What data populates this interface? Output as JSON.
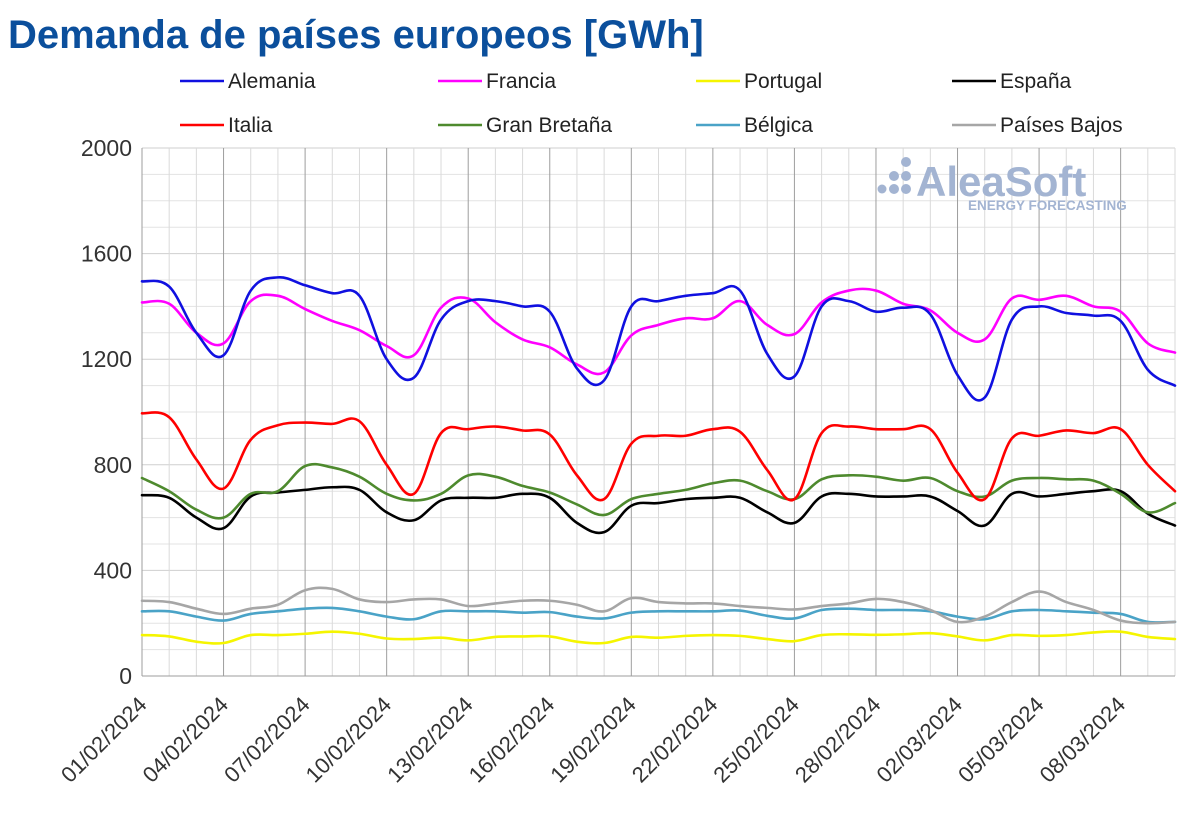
{
  "chart_data": {
    "type": "line",
    "title": "Demanda de países europeos [GWh]",
    "title_color": "#0b4f9c",
    "ylim": [
      0,
      2000
    ],
    "yticks": [
      0,
      400,
      800,
      1200,
      1600,
      2000
    ],
    "grid": true,
    "legend_position": "top",
    "x_tick_labels": [
      "01/02/2024",
      "04/02/2024",
      "07/02/2024",
      "10/02/2024",
      "13/02/2024",
      "16/02/2024",
      "19/02/2024",
      "22/02/2024",
      "25/02/2024",
      "28/02/2024",
      "02/03/2024",
      "05/03/2024",
      "08/03/2024"
    ],
    "x": [
      "01/02/2024",
      "02/02/2024",
      "03/02/2024",
      "04/02/2024",
      "05/02/2024",
      "06/02/2024",
      "07/02/2024",
      "08/02/2024",
      "09/02/2024",
      "10/02/2024",
      "11/02/2024",
      "12/02/2024",
      "13/02/2024",
      "14/02/2024",
      "15/02/2024",
      "16/02/2024",
      "17/02/2024",
      "18/02/2024",
      "19/02/2024",
      "20/02/2024",
      "21/02/2024",
      "22/02/2024",
      "23/02/2024",
      "24/02/2024",
      "25/02/2024",
      "26/02/2024",
      "27/02/2024",
      "28/02/2024",
      "29/02/2024",
      "01/03/2024",
      "02/03/2024",
      "03/03/2024",
      "04/03/2024",
      "05/03/2024",
      "06/03/2024",
      "07/03/2024",
      "08/03/2024",
      "09/03/2024",
      "10/03/2024"
    ],
    "series": [
      {
        "name": "Alemania",
        "color": "#1010e0",
        "values": [
          1495,
          1475,
          1300,
          1215,
          1460,
          1510,
          1480,
          1450,
          1440,
          1200,
          1130,
          1350,
          1420,
          1420,
          1400,
          1380,
          1165,
          1120,
          1400,
          1420,
          1440,
          1450,
          1460,
          1220,
          1135,
          1400,
          1420,
          1380,
          1395,
          1370,
          1140,
          1055,
          1350,
          1400,
          1375,
          1365,
          1345,
          1160,
          1100
        ]
      },
      {
        "name": "Francia",
        "color": "#ff00ff",
        "values": [
          1415,
          1410,
          1300,
          1260,
          1420,
          1440,
          1390,
          1345,
          1310,
          1250,
          1215,
          1395,
          1430,
          1340,
          1275,
          1245,
          1180,
          1150,
          1290,
          1330,
          1355,
          1355,
          1420,
          1330,
          1295,
          1415,
          1460,
          1460,
          1410,
          1385,
          1300,
          1275,
          1430,
          1425,
          1440,
          1400,
          1380,
          1260,
          1225
        ]
      },
      {
        "name": "Portugal",
        "color": "#f5f500",
        "values": [
          155,
          150,
          130,
          125,
          155,
          155,
          160,
          168,
          160,
          142,
          140,
          145,
          135,
          148,
          150,
          150,
          130,
          125,
          148,
          145,
          152,
          155,
          152,
          140,
          132,
          155,
          158,
          156,
          158,
          162,
          150,
          135,
          155,
          152,
          155,
          165,
          168,
          148,
          140
        ]
      },
      {
        "name": "España",
        "color": "#000000",
        "values": [
          685,
          675,
          600,
          560,
          680,
          695,
          705,
          715,
          705,
          620,
          590,
          665,
          675,
          675,
          690,
          675,
          580,
          545,
          645,
          655,
          670,
          675,
          675,
          620,
          580,
          680,
          690,
          680,
          680,
          680,
          625,
          570,
          690,
          680,
          690,
          700,
          700,
          615,
          570
        ]
      },
      {
        "name": "Italia",
        "color": "#ff0000",
        "values": [
          995,
          980,
          820,
          710,
          895,
          950,
          960,
          955,
          965,
          800,
          690,
          920,
          935,
          945,
          930,
          915,
          760,
          670,
          880,
          910,
          910,
          935,
          925,
          780,
          670,
          920,
          945,
          935,
          935,
          935,
          770,
          670,
          900,
          910,
          930,
          920,
          935,
          800,
          700
        ]
      },
      {
        "name": "Gran Bretaña",
        "color": "#4e8a2e",
        "values": [
          750,
          700,
          630,
          600,
          690,
          700,
          795,
          790,
          755,
          690,
          665,
          690,
          760,
          755,
          720,
          695,
          650,
          610,
          670,
          690,
          705,
          730,
          740,
          700,
          670,
          745,
          760,
          755,
          740,
          750,
          700,
          680,
          740,
          750,
          745,
          740,
          690,
          620,
          655
        ]
      },
      {
        "name": "Bélgica",
        "color": "#4aa3c7",
        "values": [
          245,
          245,
          225,
          210,
          235,
          245,
          255,
          258,
          245,
          225,
          215,
          245,
          245,
          245,
          240,
          242,
          225,
          218,
          240,
          245,
          245,
          245,
          248,
          228,
          218,
          250,
          255,
          250,
          250,
          245,
          225,
          215,
          245,
          250,
          245,
          240,
          235,
          205,
          205
        ]
      },
      {
        "name": "Países Bajos",
        "color": "#a6a6a6",
        "values": [
          285,
          280,
          255,
          235,
          255,
          270,
          325,
          330,
          290,
          280,
          290,
          290,
          265,
          275,
          285,
          285,
          270,
          245,
          295,
          280,
          275,
          275,
          265,
          258,
          252,
          265,
          275,
          292,
          280,
          250,
          205,
          225,
          280,
          320,
          280,
          250,
          210,
          200,
          205
        ]
      }
    ]
  },
  "logo": {
    "name": "AleaSoft",
    "tagline": "ENERGY FORECASTING",
    "color": "#a3b4d2"
  }
}
